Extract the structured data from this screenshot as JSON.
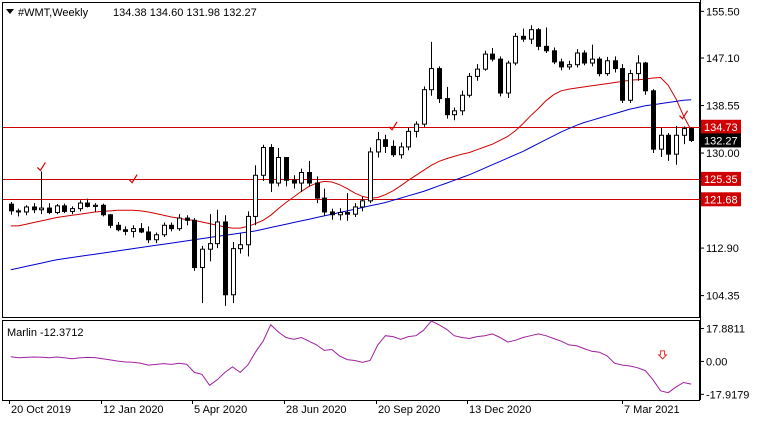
{
  "header": {
    "symbol": "#WMT,Weekly",
    "ohlc": "134.38 134.60 131.98 132.27"
  },
  "indicator": {
    "label": "Marlin -12.3712",
    "arrow_icon": "down-arrow-icon",
    "line_color": "#a020a0",
    "arrow_color": "#e83030"
  },
  "colors": {
    "background": "#ffffff",
    "bull_candle": "#ffffff",
    "bear_candle": "#000000",
    "level_line": "#d00000",
    "ma_fast": "#d00000",
    "ma_slow": "#0000d0",
    "current_price_tag": "#000000",
    "check_marks": "#e00000"
  },
  "chart_data": [
    {
      "type": "candlestick",
      "title": "#WMT,Weekly",
      "price_axis_ticks": [
        "155.50",
        "147.10",
        "138.55",
        "130.00",
        "112.90",
        "104.35"
      ],
      "date_axis_ticks": [
        "20 Oct 2019",
        "12 Jan 2020",
        "5 Apr 2020",
        "28 Jun 2020",
        "20 Sep 2020",
        "13 Dec 2020",
        "7 Mar 2021"
      ],
      "ylim": [
        100.5,
        157
      ],
      "horizontal_levels": [
        {
          "value": 134.73,
          "label": "134.73"
        },
        {
          "value": 125.35,
          "label": "125.35"
        },
        {
          "value": 121.68,
          "label": "121.68"
        }
      ],
      "current_price": {
        "value": 132.27,
        "label": "132.27"
      },
      "ohlc": [
        [
          120.8,
          121.2,
          118.9,
          119.6
        ],
        [
          119.6,
          120.0,
          118.6,
          119.4
        ],
        [
          119.4,
          120.6,
          118.8,
          120.3
        ],
        [
          120.3,
          121.0,
          119.2,
          119.8
        ],
        [
          119.8,
          126.7,
          119.0,
          120.1
        ],
        [
          120.1,
          121.0,
          119.0,
          119.3
        ],
        [
          119.3,
          120.8,
          119.0,
          120.5
        ],
        [
          120.5,
          120.9,
          119.2,
          119.5
        ],
        [
          119.5,
          120.4,
          119.0,
          120.0
        ],
        [
          120.0,
          121.5,
          119.5,
          121.0
        ],
        [
          121.0,
          121.8,
          120.2,
          120.4
        ],
        [
          120.4,
          121.0,
          119.4,
          120.6
        ],
        [
          120.6,
          120.9,
          118.6,
          118.9
        ],
        [
          118.9,
          119.0,
          116.5,
          117.0
        ],
        [
          117.0,
          117.6,
          115.9,
          116.2
        ],
        [
          116.2,
          116.8,
          115.2,
          115.9
        ],
        [
          115.9,
          117.0,
          114.8,
          116.4
        ],
        [
          116.4,
          117.4,
          115.6,
          115.8
        ],
        [
          115.8,
          116.8,
          113.8,
          114.4
        ],
        [
          114.4,
          115.7,
          113.8,
          115.3
        ],
        [
          115.3,
          117.5,
          114.9,
          117.0
        ],
        [
          117.0,
          117.5,
          115.9,
          116.4
        ],
        [
          116.4,
          119.0,
          116.0,
          118.3
        ],
        [
          118.3,
          118.8,
          117.0,
          117.9
        ],
        [
          117.9,
          118.3,
          108.8,
          109.4
        ],
        [
          109.4,
          113.3,
          103.0,
          112.7
        ],
        [
          112.7,
          119.0,
          110.5,
          113.7
        ],
        [
          113.7,
          119.8,
          112.9,
          117.6
        ],
        [
          117.6,
          118.8,
          102.5,
          104.5
        ],
        [
          104.5,
          114.0,
          103.0,
          112.8
        ],
        [
          112.8,
          115.6,
          111.9,
          113.5
        ],
        [
          113.5,
          119.5,
          111.4,
          118.6
        ],
        [
          118.6,
          127.8,
          117.0,
          126.0
        ],
        [
          126.0,
          131.5,
          125.0,
          131.0
        ],
        [
          131.0,
          131.6,
          123.0,
          124.6
        ],
        [
          124.6,
          130.9,
          124.0,
          129.2
        ],
        [
          129.2,
          129.3,
          124.0,
          125.1
        ],
        [
          125.1,
          126.0,
          123.6,
          124.6
        ],
        [
          124.6,
          127.2,
          123.0,
          126.5
        ],
        [
          126.5,
          128.6,
          124.0,
          124.6
        ],
        [
          124.6,
          125.8,
          121.0,
          121.9
        ],
        [
          121.9,
          123.6,
          118.7,
          119.4
        ],
        [
          119.4,
          120.0,
          118.0,
          118.9
        ],
        [
          118.9,
          120.1,
          117.9,
          119.3
        ],
        [
          119.3,
          122.8,
          117.8,
          119.0
        ],
        [
          119.0,
          121.0,
          118.5,
          120.3
        ],
        [
          120.3,
          122.1,
          119.5,
          121.4
        ],
        [
          121.4,
          131.0,
          121.0,
          130.2
        ],
        [
          130.2,
          133.8,
          129.2,
          132.4
        ],
        [
          132.4,
          133.3,
          130.0,
          131.2
        ],
        [
          131.2,
          132.3,
          129.3,
          129.7
        ],
        [
          129.7,
          131.9,
          129.0,
          131.1
        ],
        [
          131.1,
          134.6,
          130.5,
          133.9
        ],
        [
          133.9,
          135.7,
          132.8,
          135.2
        ],
        [
          135.2,
          142.0,
          134.7,
          141.4
        ],
        [
          141.4,
          150.0,
          140.3,
          145.2
        ],
        [
          145.2,
          145.6,
          139.0,
          139.8
        ],
        [
          139.8,
          141.9,
          136.2,
          136.9
        ],
        [
          136.9,
          138.2,
          135.9,
          137.6
        ],
        [
          137.6,
          141.2,
          136.8,
          140.4
        ],
        [
          140.4,
          144.4,
          140.0,
          143.8
        ],
        [
          143.8,
          146.0,
          143.0,
          145.1
        ],
        [
          145.1,
          148.4,
          144.8,
          147.8
        ],
        [
          147.8,
          148.9,
          146.5,
          146.9
        ],
        [
          146.9,
          147.4,
          140.2,
          140.8
        ],
        [
          140.8,
          146.6,
          139.9,
          146.2
        ],
        [
          146.2,
          151.6,
          145.8,
          151.0
        ],
        [
          151.0,
          152.4,
          150.0,
          150.5
        ],
        [
          150.5,
          153.0,
          149.6,
          152.2
        ],
        [
          152.2,
          152.5,
          148.5,
          149.2
        ],
        [
          149.2,
          152.6,
          148.0,
          148.4
        ],
        [
          148.4,
          149.0,
          146.0,
          146.4
        ],
        [
          146.4,
          147.0,
          144.9,
          145.5
        ],
        [
          145.5,
          146.6,
          145.0,
          145.9
        ],
        [
          145.9,
          148.7,
          145.4,
          148.0
        ],
        [
          148.0,
          148.5,
          145.8,
          146.2
        ],
        [
          146.2,
          149.5,
          145.6,
          146.9
        ],
        [
          146.9,
          147.3,
          143.8,
          144.3
        ],
        [
          144.3,
          147.3,
          143.9,
          146.6
        ],
        [
          146.6,
          147.4,
          144.5,
          145.2
        ],
        [
          145.2,
          146.0,
          139.0,
          139.5
        ],
        [
          139.5,
          145.0,
          139.0,
          144.3
        ],
        [
          144.3,
          147.6,
          143.0,
          146.2
        ],
        [
          146.2,
          146.4,
          140.5,
          141.2
        ],
        [
          141.2,
          141.5,
          130.0,
          130.7
        ],
        [
          130.7,
          134.5,
          129.3,
          133.2
        ],
        [
          133.2,
          133.6,
          128.6,
          129.8
        ],
        [
          129.8,
          134.9,
          127.9,
          133.2
        ],
        [
          133.2,
          134.8,
          131.6,
          134.4
        ],
        [
          134.4,
          134.6,
          131.98,
          132.27
        ]
      ],
      "moving_averages": [
        {
          "period_hint": "fast",
          "values": [
            116.9,
            116.9,
            117.2,
            117.5,
            117.8,
            118.1,
            118.4,
            118.6,
            118.8,
            119.0,
            119.2,
            119.4,
            119.5,
            119.6,
            119.7,
            119.7,
            119.7,
            119.6,
            119.4,
            119.1,
            118.8,
            118.5,
            118.3,
            118.0,
            117.9,
            117.6,
            117.3,
            117.0,
            116.7,
            116.5,
            116.5,
            116.8,
            117.3,
            117.9,
            118.8,
            120.0,
            121.1,
            122.1,
            123.1,
            124.0,
            124.6,
            124.9,
            124.8,
            124.3,
            123.6,
            122.8,
            122.2,
            121.9,
            122.0,
            122.5,
            123.2,
            124.1,
            125.1,
            126.0,
            126.9,
            127.8,
            128.5,
            129.0,
            129.4,
            129.8,
            130.1,
            130.6,
            131.1,
            131.6,
            132.3,
            133.0,
            134.0,
            135.3,
            136.7,
            138.0,
            139.4,
            140.5,
            141.2,
            141.5,
            141.7,
            141.9,
            142.1,
            142.3,
            142.5,
            142.7,
            142.9,
            143.1,
            143.2,
            143.3,
            143.5,
            143.6,
            142.2,
            139.8,
            136.7,
            134.1
          ]
        },
        {
          "period_hint": "slow",
          "values": [
            109.0,
            109.3,
            109.6,
            109.9,
            110.2,
            110.5,
            110.8,
            111.0,
            111.2,
            111.4,
            111.6,
            111.8,
            112.0,
            112.2,
            112.4,
            112.6,
            112.8,
            113.0,
            113.2,
            113.4,
            113.6,
            113.8,
            114.0,
            114.2,
            114.4,
            114.6,
            114.8,
            115.0,
            115.2,
            115.4,
            115.6,
            115.8,
            116.0,
            116.3,
            116.6,
            116.9,
            117.2,
            117.5,
            117.8,
            118.1,
            118.4,
            118.7,
            119.0,
            119.3,
            119.6,
            119.9,
            120.2,
            120.5,
            120.8,
            121.1,
            121.5,
            121.9,
            122.3,
            122.7,
            123.1,
            123.6,
            124.1,
            124.6,
            125.1,
            125.6,
            126.1,
            126.7,
            127.3,
            127.9,
            128.5,
            129.1,
            129.7,
            130.3,
            131.0,
            131.7,
            132.4,
            133.1,
            133.8,
            134.4,
            135.0,
            135.5,
            135.9,
            136.3,
            136.7,
            137.1,
            137.5,
            137.9,
            138.2,
            138.5,
            138.7,
            138.9,
            139.1,
            139.3,
            139.5,
            139.6
          ]
        }
      ],
      "annotations": [
        "check-mark",
        "check-mark",
        "check-mark",
        "check-mark"
      ]
    },
    {
      "type": "line",
      "title": "Marlin -12.3712",
      "price_axis_ticks": [
        "17.8811",
        "0.00",
        "-17.9179"
      ],
      "ylim": [
        -21,
        22
      ],
      "series": [
        {
          "name": "Marlin",
          "color": "#a020a0",
          "values": [
            2.5,
            2.0,
            2.2,
            2.4,
            2.3,
            2.0,
            2.4,
            2.0,
            1.5,
            1.9,
            2.2,
            2.1,
            1.5,
            0.8,
            0.2,
            -0.3,
            -0.5,
            -1.0,
            -2.0,
            -1.6,
            -1.2,
            -1.6,
            -1.0,
            -1.5,
            -6.0,
            -7.0,
            -13.0,
            -10.0,
            -6.0,
            -3.0,
            -6.0,
            -2.0,
            5.0,
            11.0,
            20.0,
            16.0,
            13.0,
            12.0,
            13.0,
            11.0,
            9.0,
            6.0,
            6.5,
            3.0,
            1.0,
            0.5,
            -0.5,
            0.5,
            9.0,
            14.0,
            13.5,
            12.0,
            13.5,
            14.0,
            17.0,
            22.0,
            20.0,
            17.5,
            14.0,
            13.0,
            12.5,
            13.5,
            14.0,
            15.0,
            13.0,
            10.5,
            11.5,
            13.0,
            14.0,
            15.0,
            14.0,
            12.5,
            11.0,
            9.0,
            8.5,
            7.0,
            5.5,
            5.0,
            3.0,
            -1.0,
            -2.0,
            -2.5,
            -3.5,
            -5.0,
            -10.0,
            -16.0,
            -17.0,
            -14.0,
            -11.5,
            -12.3712
          ]
        }
      ]
    }
  ]
}
